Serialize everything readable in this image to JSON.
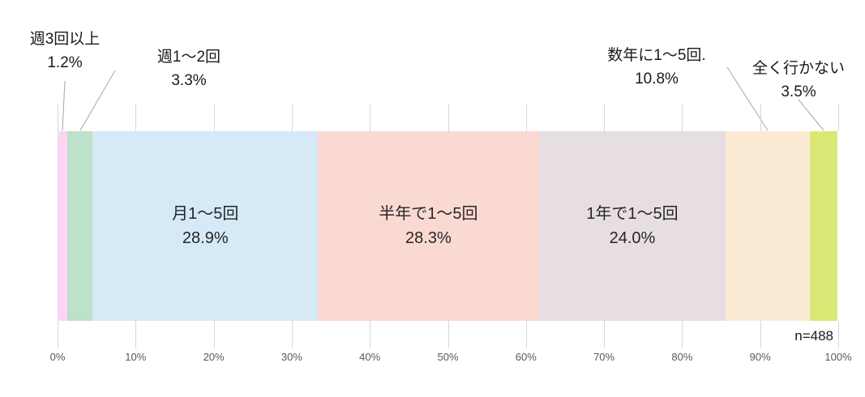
{
  "chart_data": {
    "type": "bar",
    "variant": "stacked-horizontal-100pct",
    "title": "",
    "n_label": "n=488",
    "legend_position": "none",
    "grid": "vertical-ticks",
    "segments": [
      {
        "label": "週3回以上",
        "value": 1.2,
        "value_label": "1.2%",
        "color": "#fbd5f3",
        "label_position": "callout-top-left"
      },
      {
        "label": "週1〜2回",
        "value": 3.3,
        "value_label": "3.3%",
        "color": "#bde1ca",
        "label_position": "callout-top-left"
      },
      {
        "label": "月1〜5回",
        "value": 28.9,
        "value_label": "28.9%",
        "color": "#d6e9f7",
        "label_position": "inside"
      },
      {
        "label": "半年で1〜5回",
        "value": 28.3,
        "value_label": "28.3%",
        "color": "#fad9d2",
        "label_position": "inside"
      },
      {
        "label": "1年で1〜5回",
        "value": 24.0,
        "value_label": "24.0%",
        "color": "#e6dee2",
        "label_position": "inside"
      },
      {
        "label": "数年に1〜5回.",
        "value": 10.8,
        "value_label": "10.8%",
        "color": "#fcebd4",
        "label_position": "callout-top-right"
      },
      {
        "label": "全く行かない",
        "value": 3.5,
        "value_label": "3.5%",
        "color": "#dce876",
        "label_position": "callout-top-right"
      }
    ],
    "x_axis": {
      "range": [
        0,
        100
      ],
      "ticks": [
        "0%",
        "10%",
        "20%",
        "30%",
        "40%",
        "50%",
        "60%",
        "70%",
        "80%",
        "90%",
        "100%"
      ]
    },
    "colors": {
      "tick_line": "#d6d6d6",
      "leader_line": "#a6a6a6",
      "axis_text": "#595959",
      "label_text": "#1a1a1a"
    }
  }
}
